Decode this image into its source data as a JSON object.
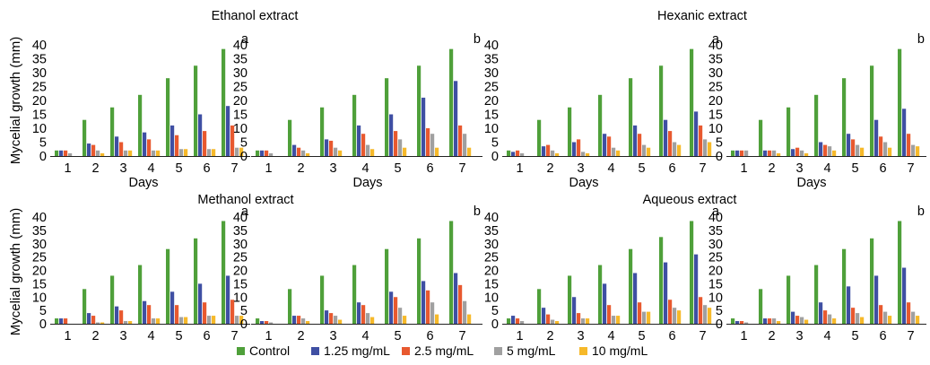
{
  "figure": {
    "ylabel": "Mycelial growth (mm)",
    "xlabel": "Days",
    "group_titles": [
      "Ethanol extract",
      "Hexanic extract",
      "Methanol extract",
      "Aqueous extract"
    ]
  },
  "legend": [
    {
      "name": "Control",
      "color": "#4fa03a"
    },
    {
      "name": "1.25 mg/mL",
      "color": "#3f4fa3"
    },
    {
      "name": "2.5 mg/mL",
      "color": "#e8592f"
    },
    {
      "name": "5 mg/mL",
      "color": "#a0a0a0"
    },
    {
      "name": "10 mg/mL",
      "color": "#f6b92a"
    }
  ],
  "chart_data": [
    {
      "type": "bar",
      "panel_label": "a",
      "categories": [
        "1",
        "2",
        "3",
        "4",
        "5",
        "6",
        "7"
      ],
      "ylim": [
        0,
        40
      ],
      "yticks": [
        0,
        5,
        10,
        15,
        20,
        25,
        30,
        35,
        40
      ],
      "series": [
        {
          "name": "Control",
          "values": [
            2,
            13,
            17.5,
            22,
            28,
            32.5,
            38.5
          ]
        },
        {
          "name": "1.25 mg/mL",
          "values": [
            2,
            4.5,
            7,
            8.5,
            11,
            15,
            18
          ]
        },
        {
          "name": "2.5 mg/mL",
          "values": [
            2,
            4,
            5,
            6,
            7.5,
            9,
            11
          ]
        },
        {
          "name": "5 mg/mL",
          "values": [
            1,
            2,
            2,
            2,
            2.5,
            2.5,
            3
          ]
        },
        {
          "name": "10 mg/mL",
          "values": [
            0,
            1,
            2,
            2,
            2.5,
            2.5,
            3
          ]
        }
      ]
    },
    {
      "type": "bar",
      "panel_label": "b",
      "categories": [
        "1",
        "2",
        "3",
        "4",
        "5",
        "6",
        "7"
      ],
      "ylim": [
        0,
        40
      ],
      "yticks": [
        0,
        5,
        10,
        15,
        20,
        25,
        30,
        35,
        40
      ],
      "series": [
        {
          "name": "Control",
          "values": [
            2,
            13,
            17.5,
            22,
            28,
            32.5,
            38.5
          ]
        },
        {
          "name": "1.25 mg/mL",
          "values": [
            2,
            4,
            6,
            11,
            15,
            21,
            27
          ]
        },
        {
          "name": "2.5 mg/mL",
          "values": [
            2,
            3,
            5.5,
            8,
            9,
            10,
            11
          ]
        },
        {
          "name": "5 mg/mL",
          "values": [
            1,
            2,
            3,
            4,
            6,
            8,
            8
          ]
        },
        {
          "name": "10 mg/mL",
          "values": [
            0,
            1,
            2,
            2.5,
            3,
            3,
            3
          ]
        }
      ]
    },
    {
      "type": "bar",
      "panel_label": "a",
      "categories": [
        "1",
        "2",
        "3",
        "4",
        "5",
        "6",
        "7"
      ],
      "ylim": [
        0,
        40
      ],
      "yticks": [
        0,
        5,
        10,
        15,
        20,
        25,
        30,
        35,
        40
      ],
      "series": [
        {
          "name": "Control",
          "values": [
            2,
            13,
            17.5,
            22,
            28,
            32.5,
            38.5
          ]
        },
        {
          "name": "1.25 mg/mL",
          "values": [
            1.5,
            3.5,
            5,
            8,
            11,
            13,
            16
          ]
        },
        {
          "name": "2.5 mg/mL",
          "values": [
            2,
            4,
            6,
            7,
            8,
            9,
            11
          ]
        },
        {
          "name": "5 mg/mL",
          "values": [
            1,
            2,
            1.5,
            3,
            4,
            5,
            6
          ]
        },
        {
          "name": "10 mg/mL",
          "values": [
            0,
            1,
            1,
            2,
            3,
            4,
            5
          ]
        }
      ]
    },
    {
      "type": "bar",
      "panel_label": "b",
      "categories": [
        "1",
        "2",
        "3",
        "4",
        "5",
        "6",
        "7"
      ],
      "ylim": [
        0,
        40
      ],
      "yticks": [
        0,
        5,
        10,
        15,
        20,
        25,
        30,
        35,
        40
      ],
      "series": [
        {
          "name": "Control",
          "values": [
            2,
            13,
            17.5,
            22,
            28,
            32.5,
            38.5
          ]
        },
        {
          "name": "1.25 mg/mL",
          "values": [
            2,
            2,
            2.5,
            5,
            8,
            13,
            17
          ]
        },
        {
          "name": "2.5 mg/mL",
          "values": [
            2,
            2,
            3,
            4,
            6,
            7,
            8
          ]
        },
        {
          "name": "5 mg/mL",
          "values": [
            2,
            2,
            2,
            3.5,
            4,
            5,
            4
          ]
        },
        {
          "name": "10 mg/mL",
          "values": [
            0,
            1,
            1,
            2,
            3,
            3,
            3.5
          ]
        }
      ]
    },
    {
      "type": "bar",
      "panel_label": "a",
      "categories": [
        "1",
        "2",
        "3",
        "4",
        "5",
        "6",
        "7"
      ],
      "ylim": [
        0,
        40
      ],
      "yticks": [
        0,
        5,
        10,
        15,
        20,
        25,
        30,
        35,
        40
      ],
      "series": [
        {
          "name": "Control",
          "values": [
            2,
            13,
            18,
            22,
            28,
            32,
            38.5
          ]
        },
        {
          "name": "1.25 mg/mL",
          "values": [
            2,
            4,
            6.5,
            8.5,
            12,
            15,
            18
          ]
        },
        {
          "name": "2.5 mg/mL",
          "values": [
            2,
            3,
            5,
            7,
            7,
            8,
            9
          ]
        },
        {
          "name": "5 mg/mL",
          "values": [
            0,
            0.5,
            1,
            2,
            2.5,
            3,
            3
          ]
        },
        {
          "name": "10 mg/mL",
          "values": [
            0,
            0.5,
            1,
            2,
            2.5,
            3,
            3
          ]
        }
      ]
    },
    {
      "type": "bar",
      "panel_label": "b",
      "categories": [
        "1",
        "2",
        "3",
        "4",
        "5",
        "6",
        "7"
      ],
      "ylim": [
        0,
        40
      ],
      "yticks": [
        0,
        5,
        10,
        15,
        20,
        25,
        30,
        35,
        40
      ],
      "series": [
        {
          "name": "Control",
          "values": [
            2,
            13,
            18,
            22,
            28,
            32,
            38.5
          ]
        },
        {
          "name": "1.25 mg/mL",
          "values": [
            1,
            3,
            5,
            8,
            12,
            16,
            19
          ]
        },
        {
          "name": "2.5 mg/mL",
          "values": [
            1,
            3,
            4,
            7,
            10,
            12.5,
            14.5
          ]
        },
        {
          "name": "5 mg/mL",
          "values": [
            0.5,
            2,
            3,
            4,
            6,
            8,
            8.5
          ]
        },
        {
          "name": "10 mg/mL",
          "values": [
            0,
            1,
            1.5,
            2.5,
            3,
            3.5,
            3.5
          ]
        }
      ]
    },
    {
      "type": "bar",
      "panel_label": "a",
      "categories": [
        "1",
        "2",
        "3",
        "4",
        "5",
        "6",
        "7"
      ],
      "ylim": [
        0,
        40
      ],
      "yticks": [
        0,
        5,
        10,
        15,
        20,
        25,
        30,
        35,
        40
      ],
      "series": [
        {
          "name": "Control",
          "values": [
            2,
            13,
            18,
            22,
            28,
            32.5,
            38.5
          ]
        },
        {
          "name": "1.25 mg/mL",
          "values": [
            3,
            6,
            10,
            15,
            19,
            23,
            26
          ]
        },
        {
          "name": "2.5 mg/mL",
          "values": [
            2,
            3.5,
            4,
            7,
            8,
            9,
            10
          ]
        },
        {
          "name": "5 mg/mL",
          "values": [
            1,
            1.5,
            2,
            3,
            4.5,
            6,
            7
          ]
        },
        {
          "name": "10 mg/mL",
          "values": [
            0,
            1,
            2,
            3,
            4.5,
            5,
            6
          ]
        }
      ]
    },
    {
      "type": "bar",
      "panel_label": "b",
      "categories": [
        "1",
        "2",
        "3",
        "4",
        "5",
        "6",
        "7"
      ],
      "ylim": [
        0,
        40
      ],
      "yticks": [
        0,
        5,
        10,
        15,
        20,
        25,
        30,
        35,
        40
      ],
      "series": [
        {
          "name": "Control",
          "values": [
            2,
            13,
            18,
            22,
            28,
            32,
            38.5
          ]
        },
        {
          "name": "1.25 mg/mL",
          "values": [
            1,
            2,
            4.5,
            8,
            14,
            18,
            21
          ]
        },
        {
          "name": "2.5 mg/mL",
          "values": [
            1,
            2,
            3,
            5,
            6,
            7,
            8
          ]
        },
        {
          "name": "5 mg/mL",
          "values": [
            0.5,
            2,
            2.5,
            3.5,
            4,
            4.5,
            4.5
          ]
        },
        {
          "name": "10 mg/mL",
          "values": [
            0,
            1,
            1.5,
            2,
            2.5,
            3,
            3
          ]
        }
      ]
    }
  ]
}
